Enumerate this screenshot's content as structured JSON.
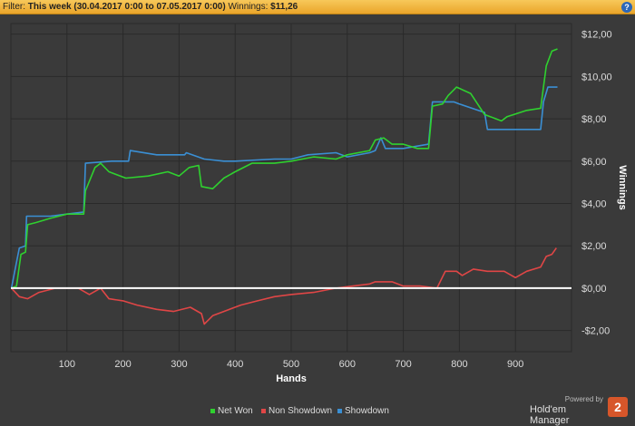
{
  "filter": {
    "prefix": "Filter:",
    "range": "This week (30.04.2017 0:00 to 07.05.2017 0:00)",
    "winnings_label": "Winnings:",
    "winnings_value": "$11,26",
    "help_glyph": "?"
  },
  "branding": {
    "powered": "Powered by",
    "name": "Hold'em Manager",
    "badge": "2"
  },
  "colors": {
    "background": "#3a3a3a",
    "grid": "#2a2a2a",
    "zero_line": "#ffffff",
    "net_won": "#2fd12f",
    "non_showdown": "#e04646",
    "showdown": "#3a8fd4"
  },
  "chart_data": {
    "type": "line",
    "xlabel": "Hands",
    "ylabel": "Winnings",
    "xlim": [
      0,
      1000
    ],
    "ylim": [
      -3,
      12.5
    ],
    "x_ticks": [
      100,
      200,
      300,
      400,
      500,
      600,
      700,
      800,
      900
    ],
    "y_ticks": [
      {
        "value": -2,
        "label": "-$2,00"
      },
      {
        "value": 0,
        "label": "$0,00"
      },
      {
        "value": 2,
        "label": "$2,00"
      },
      {
        "value": 4,
        "label": "$4,00"
      },
      {
        "value": 6,
        "label": "$6,00"
      },
      {
        "value": 8,
        "label": "$8,00"
      },
      {
        "value": 10,
        "label": "$10,00"
      },
      {
        "value": 12,
        "label": "$12,00"
      }
    ],
    "grid": true,
    "legend_position": "bottom",
    "series": [
      {
        "name": "Net Won",
        "color": "#2fd12f",
        "points": [
          [
            1,
            0
          ],
          [
            10,
            0.1
          ],
          [
            18,
            1.6
          ],
          [
            26,
            1.7
          ],
          [
            30,
            3
          ],
          [
            45,
            3.1
          ],
          [
            70,
            3.3
          ],
          [
            100,
            3.5
          ],
          [
            130,
            3.5
          ],
          [
            133,
            4.6
          ],
          [
            150,
            5.7
          ],
          [
            160,
            5.9
          ],
          [
            175,
            5.5
          ],
          [
            205,
            5.2
          ],
          [
            245,
            5.3
          ],
          [
            280,
            5.5
          ],
          [
            300,
            5.3
          ],
          [
            318,
            5.7
          ],
          [
            335,
            5.8
          ],
          [
            340,
            4.8
          ],
          [
            360,
            4.7
          ],
          [
            380,
            5.2
          ],
          [
            400,
            5.5
          ],
          [
            430,
            5.9
          ],
          [
            470,
            5.9
          ],
          [
            500,
            6
          ],
          [
            540,
            6.2
          ],
          [
            580,
            6.1
          ],
          [
            600,
            6.3
          ],
          [
            640,
            6.5
          ],
          [
            650,
            7
          ],
          [
            665,
            7.1
          ],
          [
            680,
            6.8
          ],
          [
            700,
            6.8
          ],
          [
            725,
            6.6
          ],
          [
            745,
            6.6
          ],
          [
            752,
            8.6
          ],
          [
            770,
            8.7
          ],
          [
            780,
            9.1
          ],
          [
            795,
            9.5
          ],
          [
            820,
            9.2
          ],
          [
            845,
            8.2
          ],
          [
            875,
            7.9
          ],
          [
            885,
            8.1
          ],
          [
            920,
            8.4
          ],
          [
            945,
            8.5
          ],
          [
            955,
            10.5
          ],
          [
            965,
            11.2
          ],
          [
            975,
            11.3
          ]
        ]
      },
      {
        "name": "Non Showdown",
        "color": "#e04646",
        "points": [
          [
            1,
            0
          ],
          [
            15,
            -0.4
          ],
          [
            30,
            -0.5
          ],
          [
            50,
            -0.2
          ],
          [
            80,
            0
          ],
          [
            120,
            0
          ],
          [
            140,
            -0.3
          ],
          [
            160,
            0
          ],
          [
            175,
            -0.5
          ],
          [
            200,
            -0.6
          ],
          [
            225,
            -0.8
          ],
          [
            260,
            -1
          ],
          [
            290,
            -1.1
          ],
          [
            320,
            -0.9
          ],
          [
            340,
            -1.2
          ],
          [
            345,
            -1.7
          ],
          [
            360,
            -1.3
          ],
          [
            380,
            -1.1
          ],
          [
            410,
            -0.8
          ],
          [
            440,
            -0.6
          ],
          [
            470,
            -0.4
          ],
          [
            500,
            -0.3
          ],
          [
            540,
            -0.2
          ],
          [
            580,
            0
          ],
          [
            610,
            0.1
          ],
          [
            640,
            0.2
          ],
          [
            650,
            0.3
          ],
          [
            680,
            0.3
          ],
          [
            700,
            0.1
          ],
          [
            730,
            0.1
          ],
          [
            760,
            0
          ],
          [
            775,
            0.8
          ],
          [
            795,
            0.8
          ],
          [
            805,
            0.6
          ],
          [
            825,
            0.9
          ],
          [
            850,
            0.8
          ],
          [
            880,
            0.8
          ],
          [
            900,
            0.5
          ],
          [
            920,
            0.8
          ],
          [
            945,
            1
          ],
          [
            955,
            1.5
          ],
          [
            965,
            1.6
          ],
          [
            973,
            1.9
          ]
        ]
      },
      {
        "name": "Showdown",
        "color": "#3a8fd4",
        "points": [
          [
            1,
            0
          ],
          [
            15,
            1.9
          ],
          [
            26,
            2
          ],
          [
            28,
            3.4
          ],
          [
            70,
            3.4
          ],
          [
            100,
            3.5
          ],
          [
            130,
            3.6
          ],
          [
            133,
            5.9
          ],
          [
            180,
            6
          ],
          [
            210,
            6
          ],
          [
            213,
            6.5
          ],
          [
            260,
            6.3
          ],
          [
            310,
            6.3
          ],
          [
            313,
            6.4
          ],
          [
            345,
            6.1
          ],
          [
            380,
            6
          ],
          [
            400,
            6
          ],
          [
            470,
            6.1
          ],
          [
            500,
            6.1
          ],
          [
            530,
            6.3
          ],
          [
            580,
            6.4
          ],
          [
            600,
            6.2
          ],
          [
            640,
            6.4
          ],
          [
            650,
            6.5
          ],
          [
            660,
            7.1
          ],
          [
            668,
            6.6
          ],
          [
            700,
            6.6
          ],
          [
            745,
            6.8
          ],
          [
            752,
            8.8
          ],
          [
            790,
            8.8
          ],
          [
            800,
            8.7
          ],
          [
            845,
            8.3
          ],
          [
            850,
            7.5
          ],
          [
            945,
            7.5
          ],
          [
            950,
            8.8
          ],
          [
            958,
            9.5
          ],
          [
            975,
            9.5
          ]
        ]
      }
    ]
  }
}
